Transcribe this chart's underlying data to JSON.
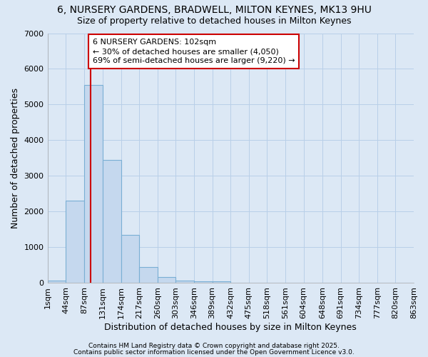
{
  "title1": "6, NURSERY GARDENS, BRADWELL, MILTON KEYNES, MK13 9HU",
  "title2": "Size of property relative to detached houses in Milton Keynes",
  "xlabel": "Distribution of detached houses by size in Milton Keynes",
  "ylabel": "Number of detached properties",
  "bin_edges": [
    1,
    44,
    87,
    131,
    174,
    217,
    260,
    303,
    346,
    389,
    432,
    475,
    518,
    561,
    604,
    648,
    691,
    734,
    777,
    820,
    863
  ],
  "bar_heights": [
    75,
    2300,
    5550,
    3450,
    1350,
    450,
    175,
    75,
    50,
    50,
    0,
    0,
    0,
    0,
    0,
    0,
    0,
    0,
    0,
    0
  ],
  "bar_color": "#c5d8ee",
  "bar_edge_color": "#7aafd4",
  "background_color": "#dce8f5",
  "grid_color": "#b8cfe8",
  "property_size": 102,
  "red_line_color": "#cc0000",
  "annotation_line1": "6 NURSERY GARDENS: 102sqm",
  "annotation_line2": "← 30% of detached houses are smaller (4,050)",
  "annotation_line3": "69% of semi-detached houses are larger (9,220) →",
  "annotation_box_color": "#ffffff",
  "annotation_box_edge": "#cc0000",
  "footer1": "Contains HM Land Registry data © Crown copyright and database right 2025.",
  "footer2": "Contains public sector information licensed under the Open Government Licence v3.0.",
  "ylim": [
    0,
    7000
  ],
  "title_fontsize": 10,
  "subtitle_fontsize": 9,
  "axis_label_fontsize": 9,
  "tick_fontsize": 8,
  "annotation_fontsize": 8,
  "footer_fontsize": 6.5
}
